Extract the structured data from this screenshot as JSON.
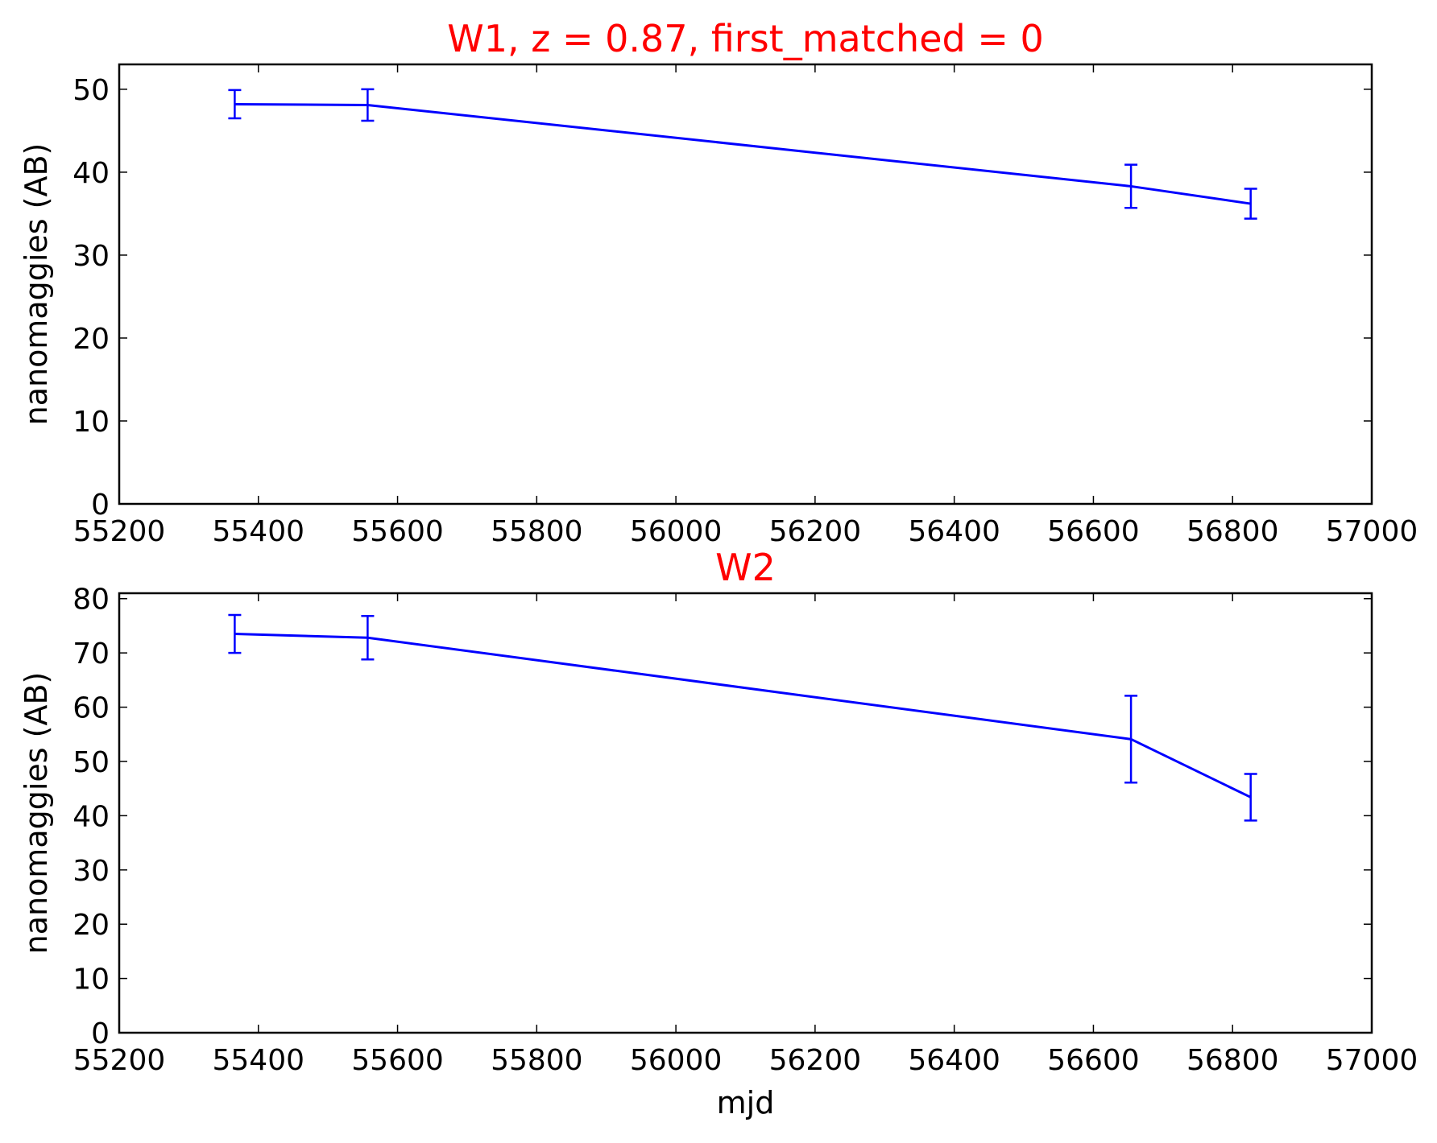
{
  "chart_data": [
    {
      "type": "line",
      "title": "W1, z = 0.87, first_matched = 0",
      "title_color": "#ff0000",
      "xlabel": "",
      "ylabel": "nanomaggies (AB)",
      "xlim": [
        55200,
        57000
      ],
      "ylim": [
        0,
        53
      ],
      "xticks": [
        55200,
        55400,
        55600,
        55800,
        56000,
        56200,
        56400,
        56600,
        56800,
        57000
      ],
      "yticks": [
        0,
        10,
        20,
        30,
        40,
        50
      ],
      "grid": false,
      "series": [
        {
          "color": "#0000ff",
          "x": [
            55366,
            55557,
            56654,
            56826
          ],
          "y": [
            48.2,
            48.1,
            38.3,
            36.2
          ],
          "yerr": [
            1.7,
            1.9,
            2.6,
            1.8
          ]
        }
      ]
    },
    {
      "type": "line",
      "title": "W2",
      "title_color": "#ff0000",
      "xlabel": "mjd",
      "ylabel": "nanomaggies (AB)",
      "xlim": [
        55200,
        57000
      ],
      "ylim": [
        0,
        81
      ],
      "xticks": [
        55200,
        55400,
        55600,
        55800,
        56000,
        56200,
        56400,
        56600,
        56800,
        57000
      ],
      "yticks": [
        0,
        10,
        20,
        30,
        40,
        50,
        60,
        70,
        80
      ],
      "grid": false,
      "series": [
        {
          "color": "#0000ff",
          "x": [
            55366,
            55557,
            56654,
            56826
          ],
          "y": [
            73.5,
            72.8,
            54.1,
            43.4
          ],
          "yerr": [
            3.5,
            4.0,
            8.0,
            4.3
          ]
        }
      ]
    }
  ]
}
